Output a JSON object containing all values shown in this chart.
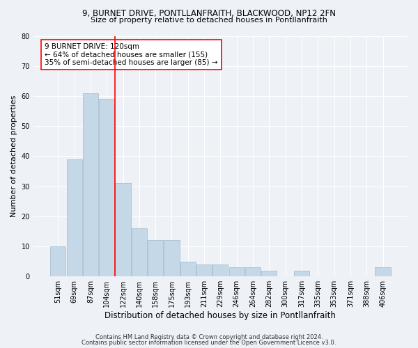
{
  "title1": "9, BURNET DRIVE, PONTLLANFRAITH, BLACKWOOD, NP12 2FN",
  "title2": "Size of property relative to detached houses in Pontllanfraith",
  "xlabel": "Distribution of detached houses by size in Pontllanfraith",
  "ylabel": "Number of detached properties",
  "categories": [
    "51sqm",
    "69sqm",
    "87sqm",
    "104sqm",
    "122sqm",
    "140sqm",
    "158sqm",
    "175sqm",
    "193sqm",
    "211sqm",
    "229sqm",
    "246sqm",
    "264sqm",
    "282sqm",
    "300sqm",
    "317sqm",
    "335sqm",
    "353sqm",
    "371sqm",
    "388sqm",
    "406sqm"
  ],
  "values": [
    10,
    39,
    61,
    59,
    31,
    16,
    12,
    12,
    5,
    4,
    4,
    3,
    3,
    2,
    0,
    2,
    0,
    0,
    0,
    0,
    3
  ],
  "bar_color": "#c5d8e8",
  "bar_edge_color": "#a0b8cc",
  "ylim": [
    0,
    80
  ],
  "yticks": [
    0,
    10,
    20,
    30,
    40,
    50,
    60,
    70,
    80
  ],
  "vline_x_index": 3.5,
  "annotation_line1": "9 BURNET DRIVE: 120sqm",
  "annotation_line2": "← 64% of detached houses are smaller (155)",
  "annotation_line3": "35% of semi-detached houses are larger (85) →",
  "footer1": "Contains HM Land Registry data © Crown copyright and database right 2024.",
  "footer2": "Contains public sector information licensed under the Open Government Licence v3.0.",
  "background_color": "#eef2f7",
  "plot_bg_color": "#eef2f7",
  "grid_color": "#ffffff",
  "title1_fontsize": 8.5,
  "title2_fontsize": 8.0,
  "xlabel_fontsize": 8.5,
  "ylabel_fontsize": 8.0,
  "tick_fontsize": 7.0,
  "annotation_fontsize": 7.5,
  "footer_fontsize": 6.0
}
